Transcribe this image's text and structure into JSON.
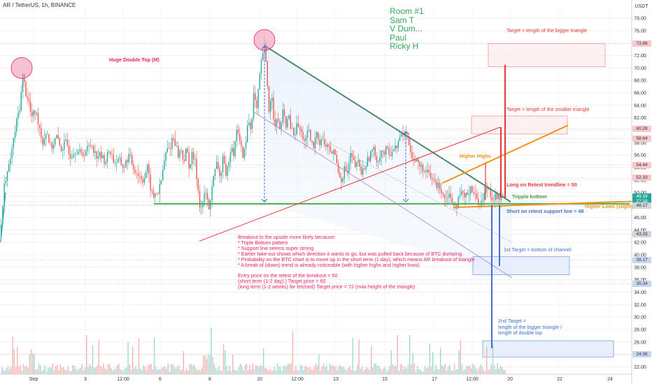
{
  "header": {
    "symbol_text": "AR / TetherUS, 1h, BINANCE"
  },
  "axis": {
    "currency": "USDT",
    "y_ticks": [
      "78.00",
      "76.00",
      "74.00",
      "72.00",
      "70.00",
      "68.00",
      "66.00",
      "64.00",
      "62.00",
      "60.00",
      "58.00",
      "56.00",
      "54.00",
      "52.00",
      "50.00",
      "48.00",
      "46.00",
      "44.00",
      "42.00",
      "40.00",
      "38.00",
      "36.00",
      "34.00",
      "32.00",
      "30.00",
      "28.00",
      "26.00",
      "24.00",
      "22.00"
    ],
    "x_ticks": [
      {
        "label": "Sep",
        "x": 48
      },
      {
        "label": "3",
        "x": 122
      },
      {
        "label": "12:00",
        "x": 176
      },
      {
        "label": "6",
        "x": 229
      },
      {
        "label": "8",
        "x": 300
      },
      {
        "label": "10",
        "x": 371
      },
      {
        "label": "12:00",
        "x": 425
      },
      {
        "label": "13",
        "x": 480
      },
      {
        "label": "15",
        "x": 550
      },
      {
        "label": "17",
        "x": 621
      },
      {
        "label": "12:00",
        "x": 675
      },
      {
        "label": "20",
        "x": 729
      },
      {
        "label": "22",
        "x": 800
      },
      {
        "label": "24",
        "x": 872
      }
    ],
    "price_tags": [
      {
        "label": "73.86",
        "value": 73.86,
        "bg": "#f8c8cc",
        "fg": "#333"
      },
      {
        "label": "60.28",
        "value": 60.28,
        "bg": "#f8c8cc",
        "fg": "#333"
      },
      {
        "label": "58.64",
        "value": 58.64,
        "bg": "#f8c8cc",
        "fg": "#333"
      },
      {
        "label": "54.44",
        "value": 54.44,
        "bg": "#f8c8cc",
        "fg": "#333"
      },
      {
        "label": "52.33",
        "value": 52.33,
        "bg": "#f8c8cc",
        "fg": "#333"
      },
      {
        "label": "49.39",
        "value": 49.39,
        "bg": "#26a69a",
        "fg": "#fff"
      },
      {
        "label": "27:38",
        "value": 48.6,
        "bg": "#26a69a",
        "fg": "#fff"
      },
      {
        "label": "48.17",
        "value": 47.9,
        "bg": "#d1d4dc",
        "fg": "#333"
      },
      {
        "label": "43.33",
        "value": 43.33,
        "bg": "#d1d4dc",
        "fg": "#333"
      },
      {
        "label": "39.17",
        "value": 39.17,
        "bg": "#c9d6f2",
        "fg": "#333"
      },
      {
        "label": "35.34",
        "value": 35.34,
        "bg": "#c9d6f2",
        "fg": "#333"
      },
      {
        "label": "24.06",
        "value": 24.06,
        "bg": "#c9d6f2",
        "fg": "#333"
      }
    ]
  },
  "room": [
    "Room #1",
    "Sam T",
    "V Dum...",
    "Paul",
    "Ricky H"
  ],
  "annotations": {
    "double_top": "Huge Double Top (M)",
    "target_bigger": "Target = length of the bigger triangle",
    "target_smaller": "Target = length of the smaller triangle",
    "higher_highs": "Higher Highs",
    "long_retest": "Long on Retest trendline = 50",
    "triple_bottom": "Tripple bottom",
    "higher_lows": "Higher Lows (slighly)",
    "short_retest": "Short on retest support line = 48",
    "first_target": "1st Target = bottom of channel",
    "second_target": [
      "2nd Target =",
      "length of the bigger triangle /",
      "length of double top"
    ]
  },
  "notes": [
    "Breakout to the upside more likely because:",
    "* Triple Bottom pattern",
    "* Support line seems super strong",
    "* Earlier fake-out shows which direction it wants to go, but was pulled back because of BTC dumping.",
    "* Probability on the BTC chart is to move up in the short term (1 day), which means AR breakout of triangle",
    "* A break of (down) trend is already noticeable (with higher highs and higher lows)",
    "",
    "Entry price on the retest of the breakout = 50",
    "(short term (1-2 day) ) Target price  = 60",
    "(long term (1-2 weeks) far fetched) Target price = 72 (max height of the triangle)"
  ],
  "colors": {
    "up": "#26a69a",
    "down": "#ef5350",
    "triangle": "#4f8a6e",
    "support": "#4caf50",
    "orange": "#f7931a",
    "red": "#e53935",
    "blue": "#3f6fd1",
    "purple": "#b07cc6",
    "pink": "#e91e63"
  },
  "chart_data": {
    "type": "candlestick",
    "title": "AR / TetherUS, 1h, BINANCE",
    "ylim": [
      21.5,
      79.5
    ],
    "y_scale": "linear",
    "ylabel": "USDT",
    "close_path": [
      [
        0,
        43
      ],
      [
        6,
        52
      ],
      [
        12,
        54
      ],
      [
        18,
        58
      ],
      [
        24,
        62
      ],
      [
        28,
        64
      ],
      [
        32,
        69
      ],
      [
        36,
        66
      ],
      [
        40,
        65
      ],
      [
        44,
        62
      ],
      [
        50,
        63
      ],
      [
        55,
        61
      ],
      [
        60,
        58
      ],
      [
        66,
        60
      ],
      [
        72,
        57
      ],
      [
        80,
        59
      ],
      [
        86,
        57
      ],
      [
        94,
        58
      ],
      [
        100,
        56
      ],
      [
        108,
        57
      ],
      [
        116,
        56
      ],
      [
        124,
        57
      ],
      [
        130,
        58
      ],
      [
        136,
        56
      ],
      [
        142,
        56
      ],
      [
        150,
        55
      ],
      [
        156,
        57
      ],
      [
        162,
        55
      ],
      [
        170,
        55
      ],
      [
        176,
        54
      ],
      [
        184,
        56
      ],
      [
        190,
        54
      ],
      [
        196,
        53
      ],
      [
        204,
        52
      ],
      [
        210,
        54
      ],
      [
        214,
        51
      ],
      [
        218,
        49
      ],
      [
        222,
        50
      ],
      [
        226,
        50
      ],
      [
        230,
        52
      ],
      [
        234,
        55
      ],
      [
        238,
        57
      ],
      [
        242,
        57
      ],
      [
        246,
        59
      ],
      [
        250,
        58
      ],
      [
        254,
        56
      ],
      [
        258,
        57
      ],
      [
        262,
        55
      ],
      [
        266,
        57
      ],
      [
        270,
        54
      ],
      [
        274,
        56
      ],
      [
        278,
        55
      ],
      [
        282,
        51
      ],
      [
        286,
        47
      ],
      [
        290,
        49
      ],
      [
        294,
        50
      ],
      [
        298,
        47
      ],
      [
        302,
        51
      ],
      [
        306,
        53
      ],
      [
        310,
        55
      ],
      [
        314,
        52
      ],
      [
        318,
        56
      ],
      [
        322,
        52
      ],
      [
        326,
        55
      ],
      [
        330,
        58
      ],
      [
        334,
        56
      ],
      [
        338,
        61
      ],
      [
        342,
        58
      ],
      [
        346,
        56
      ],
      [
        350,
        57
      ],
      [
        354,
        62
      ],
      [
        358,
        60
      ],
      [
        362,
        66
      ],
      [
        366,
        63
      ],
      [
        370,
        68
      ],
      [
        374,
        72
      ],
      [
        377,
        73.5
      ],
      [
        380,
        70
      ],
      [
        384,
        63
      ],
      [
        388,
        66
      ],
      [
        392,
        60
      ],
      [
        396,
        62
      ],
      [
        400,
        60
      ],
      [
        404,
        63
      ],
      [
        408,
        61
      ],
      [
        412,
        62
      ],
      [
        416,
        60
      ],
      [
        420,
        59
      ],
      [
        424,
        61
      ],
      [
        428,
        60
      ],
      [
        432,
        59
      ],
      [
        436,
        58
      ],
      [
        440,
        60
      ],
      [
        444,
        58
      ],
      [
        448,
        57
      ],
      [
        452,
        60
      ],
      [
        456,
        58
      ],
      [
        460,
        59
      ],
      [
        464,
        57
      ],
      [
        468,
        58
      ],
      [
        472,
        56
      ],
      [
        476,
        57
      ],
      [
        480,
        55
      ],
      [
        484,
        53
      ],
      [
        488,
        52
      ],
      [
        492,
        54
      ],
      [
        496,
        53
      ],
      [
        500,
        56
      ],
      [
        504,
        55
      ],
      [
        508,
        54
      ],
      [
        512,
        55
      ],
      [
        516,
        53
      ],
      [
        520,
        54
      ],
      [
        524,
        55
      ],
      [
        528,
        56
      ],
      [
        532,
        57
      ],
      [
        536,
        56
      ],
      [
        540,
        55
      ],
      [
        544,
        57
      ],
      [
        548,
        56
      ],
      [
        552,
        57
      ],
      [
        556,
        56
      ],
      [
        560,
        57
      ],
      [
        564,
        57
      ],
      [
        568,
        58
      ],
      [
        572,
        59
      ],
      [
        576,
        59.5
      ],
      [
        580,
        59
      ],
      [
        584,
        58
      ],
      [
        588,
        56
      ],
      [
        592,
        55
      ],
      [
        596,
        55
      ],
      [
        600,
        54
      ],
      [
        604,
        54
      ],
      [
        608,
        53
      ],
      [
        612,
        53
      ],
      [
        616,
        52
      ],
      [
        620,
        52
      ],
      [
        624,
        51
      ],
      [
        628,
        51
      ],
      [
        632,
        50
      ],
      [
        636,
        49
      ],
      [
        640,
        50
      ],
      [
        644,
        49
      ],
      [
        648,
        48.5
      ],
      [
        652,
        48
      ],
      [
        656,
        49
      ],
      [
        660,
        50
      ],
      [
        664,
        49
      ],
      [
        668,
        50
      ],
      [
        672,
        51
      ],
      [
        676,
        50
      ],
      [
        680,
        49
      ],
      [
        684,
        48.5
      ],
      [
        688,
        48.5
      ],
      [
        692,
        50
      ],
      [
        696,
        51
      ],
      [
        700,
        50
      ],
      [
        704,
        49
      ],
      [
        708,
        49.5
      ],
      [
        712,
        49
      ],
      [
        716,
        49.2
      ],
      [
        720,
        49.39
      ]
    ],
    "overlays": {
      "triangle_upper": [
        [
          378,
          73.6
        ],
        [
          730,
          48.5
        ]
      ],
      "triangle_lower_support": [
        [
          220,
          48.2
        ],
        [
          900,
          48.2
        ]
      ],
      "rising_trendline_red": [
        [
          285,
          42.2
        ],
        [
          715,
          60.5
        ]
      ],
      "purple_channel_line": [
        [
          362,
          63
        ],
        [
          732,
          36.3
        ]
      ],
      "orange_higher_highs": [
        [
          632,
          51.5
        ],
        [
          812,
          60.8
        ]
      ],
      "orange_higher_lows": [
        [
          648,
          47.6
        ],
        [
          910,
          48.6
        ]
      ],
      "target_big_box": [
        49.3,
        73.9
      ],
      "target_small_box": [
        [
          60.2,
          62.3
        ],
        [
          60.2
        ]
      ],
      "first_target_box": [
        36.8,
        39.7
      ],
      "second_target_box": [
        23.6,
        26.2
      ]
    },
    "ticks": {
      "x": [
        "Sep",
        "3",
        "12:00",
        "6",
        "8",
        "10",
        "12:00",
        "13",
        "15",
        "17",
        "12:00",
        "20",
        "22",
        "24"
      ]
    }
  }
}
